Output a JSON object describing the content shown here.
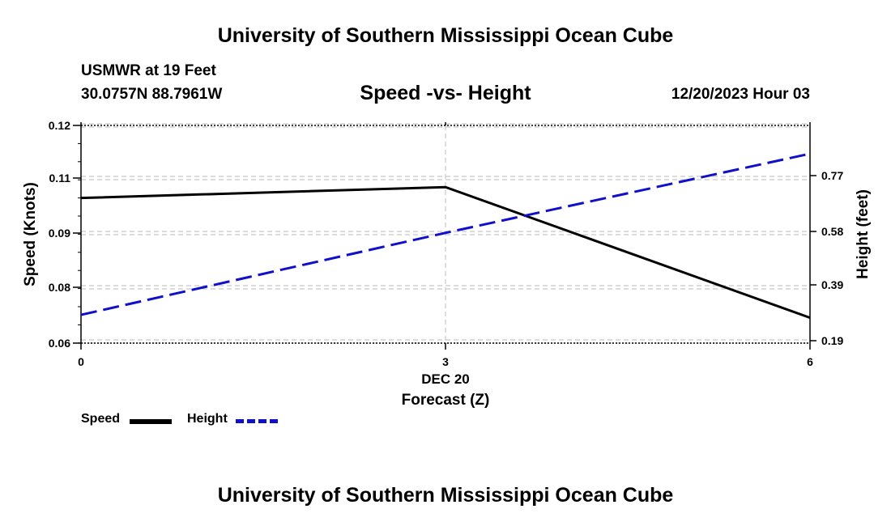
{
  "header": {
    "org_title": "University of Southern Mississippi Ocean Cube",
    "station": "USMWR at 19 Feet",
    "coordinates": "30.0757N  88.7961W",
    "chart_title": "Speed -vs- Height",
    "datetime": "12/20/2023 Hour 03"
  },
  "footer": {
    "org_title": "University of Southern Mississippi Ocean Cube"
  },
  "legend": {
    "speed_label": "Speed",
    "height_label": "Height"
  },
  "colors": {
    "speed": "#000000",
    "height": "#1010cc",
    "grid": "#c8c8c8"
  },
  "chart_data": {
    "type": "line",
    "x": [
      0,
      3,
      6
    ],
    "xlim": [
      0,
      6
    ],
    "xticks": [
      "0",
      "3",
      "6"
    ],
    "xlabel_date": "DEC 20",
    "xlabel": "Forecast (Z)",
    "ylabel_left": "Speed (Knots)",
    "ylabel_right": "Height (feet)",
    "ylim_left": [
      0.06,
      0.12
    ],
    "ylim_right": [
      0.19,
      0.96
    ],
    "yticks_left": [
      "0.12",
      "0.11",
      "0.09",
      "0.08",
      "0.06"
    ],
    "yticks_right": [
      "0.77",
      "0.58",
      "0.39",
      "0.19"
    ],
    "series": [
      {
        "name": "Speed",
        "axis": "left",
        "style": "solid",
        "values": [
          0.1,
          0.103,
          0.067
        ]
      },
      {
        "name": "Height",
        "axis": "right",
        "style": "dashed",
        "values": [
          0.29,
          0.58,
          0.86
        ]
      }
    ]
  }
}
